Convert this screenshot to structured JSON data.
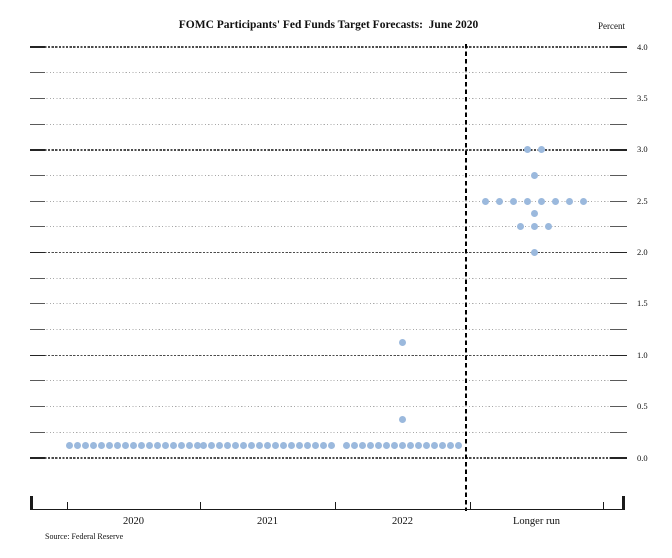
{
  "page": {
    "title": "FOMC Participants' Fed Funds Target Forecasts:  June 2020",
    "unit_label": "Percent",
    "source": "Source: Federal Reserve"
  },
  "colors": {
    "dot": "#9bb9dd",
    "grid_light": "#a8a8a8",
    "grid_dark": "#4c4c4c",
    "axis": "#1a1a1a"
  },
  "chart_data": {
    "type": "scatter",
    "title": "FOMC Participants' Fed Funds Target Forecasts:  June 2020",
    "ylabel": "Percent",
    "ylim": [
      0.0,
      4.0
    ],
    "y_grid_step": 0.25,
    "y_major_lines": [
      0.0,
      1.0,
      2.0,
      3.0,
      4.0
    ],
    "y_tick_labels": [
      "4.0",
      "3.5",
      "3.0",
      "2.5",
      "2.0",
      "1.5",
      "1.0",
      "0.5",
      "0.0"
    ],
    "x_categories": [
      "2020",
      "2021",
      "2022",
      "Longer run"
    ],
    "separator_before_category": "Longer run",
    "grid": "dotted horizontal lines every 0.25, darker at whole percents",
    "legend_position": "none",
    "dot_distribution": [
      {
        "category": "2020",
        "dots": [
          {
            "rate": 0.125,
            "count": 17
          }
        ]
      },
      {
        "category": "2021",
        "dots": [
          {
            "rate": 0.125,
            "count": 17
          }
        ]
      },
      {
        "category": "2022",
        "dots": [
          {
            "rate": 0.125,
            "count": 15
          },
          {
            "rate": 0.375,
            "count": 1
          },
          {
            "rate": 1.125,
            "count": 1
          }
        ]
      },
      {
        "category": "Longer run",
        "dots": [
          {
            "rate": 2.0,
            "count": 1
          },
          {
            "rate": 2.25,
            "count": 3
          },
          {
            "rate": 2.375,
            "count": 1
          },
          {
            "rate": 2.5,
            "count": 8
          },
          {
            "rate": 2.75,
            "count": 1
          },
          {
            "rate": 3.0,
            "count": 2
          }
        ]
      }
    ]
  }
}
